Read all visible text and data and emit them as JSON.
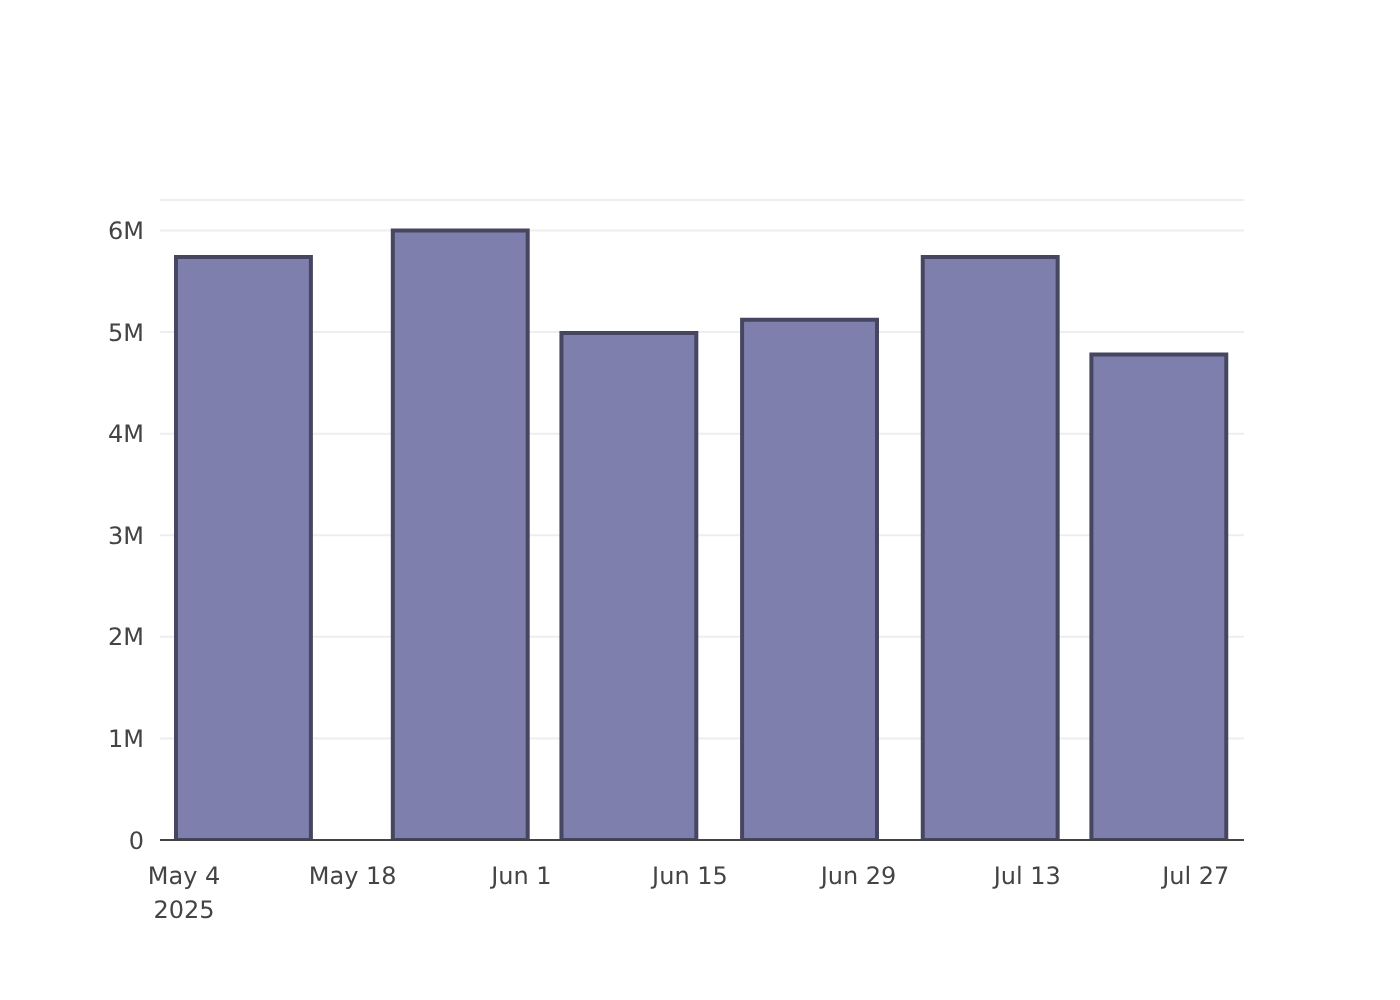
{
  "chart_data": {
    "type": "bar",
    "x": [
      "2025-05-09",
      "2025-05-27",
      "2025-06-10",
      "2025-06-25",
      "2025-07-10",
      "2025-07-24"
    ],
    "values": [
      5740000,
      6000000,
      4990000,
      5120000,
      5740000,
      4780000
    ],
    "color": "#7f7fae",
    "xlim": [
      "2025-05-02",
      "2025-07-31"
    ],
    "xticks": [
      {
        "value": "2025-05-04",
        "label": "May 4\n2025"
      },
      {
        "value": "2025-05-18",
        "label": "May 18"
      },
      {
        "value": "2025-06-01",
        "label": "Jun 1"
      },
      {
        "value": "2025-06-15",
        "label": "Jun 15"
      },
      {
        "value": "2025-06-29",
        "label": "Jun 29"
      },
      {
        "value": "2025-07-13",
        "label": "Jul 13"
      },
      {
        "value": "2025-07-27",
        "label": "Jul 27"
      }
    ],
    "ylim": [
      0,
      6300000
    ],
    "yticks": [
      0,
      {
        "value": 1000000,
        "label": "1M"
      },
      {
        "value": 2000000,
        "label": "2M"
      },
      {
        "value": 3000000,
        "label": "3M"
      },
      {
        "value": 4000000,
        "label": "4M"
      },
      {
        "value": 5000000,
        "label": "5M"
      },
      {
        "value": 6000000,
        "label": "6M"
      }
    ],
    "grid": "y"
  }
}
